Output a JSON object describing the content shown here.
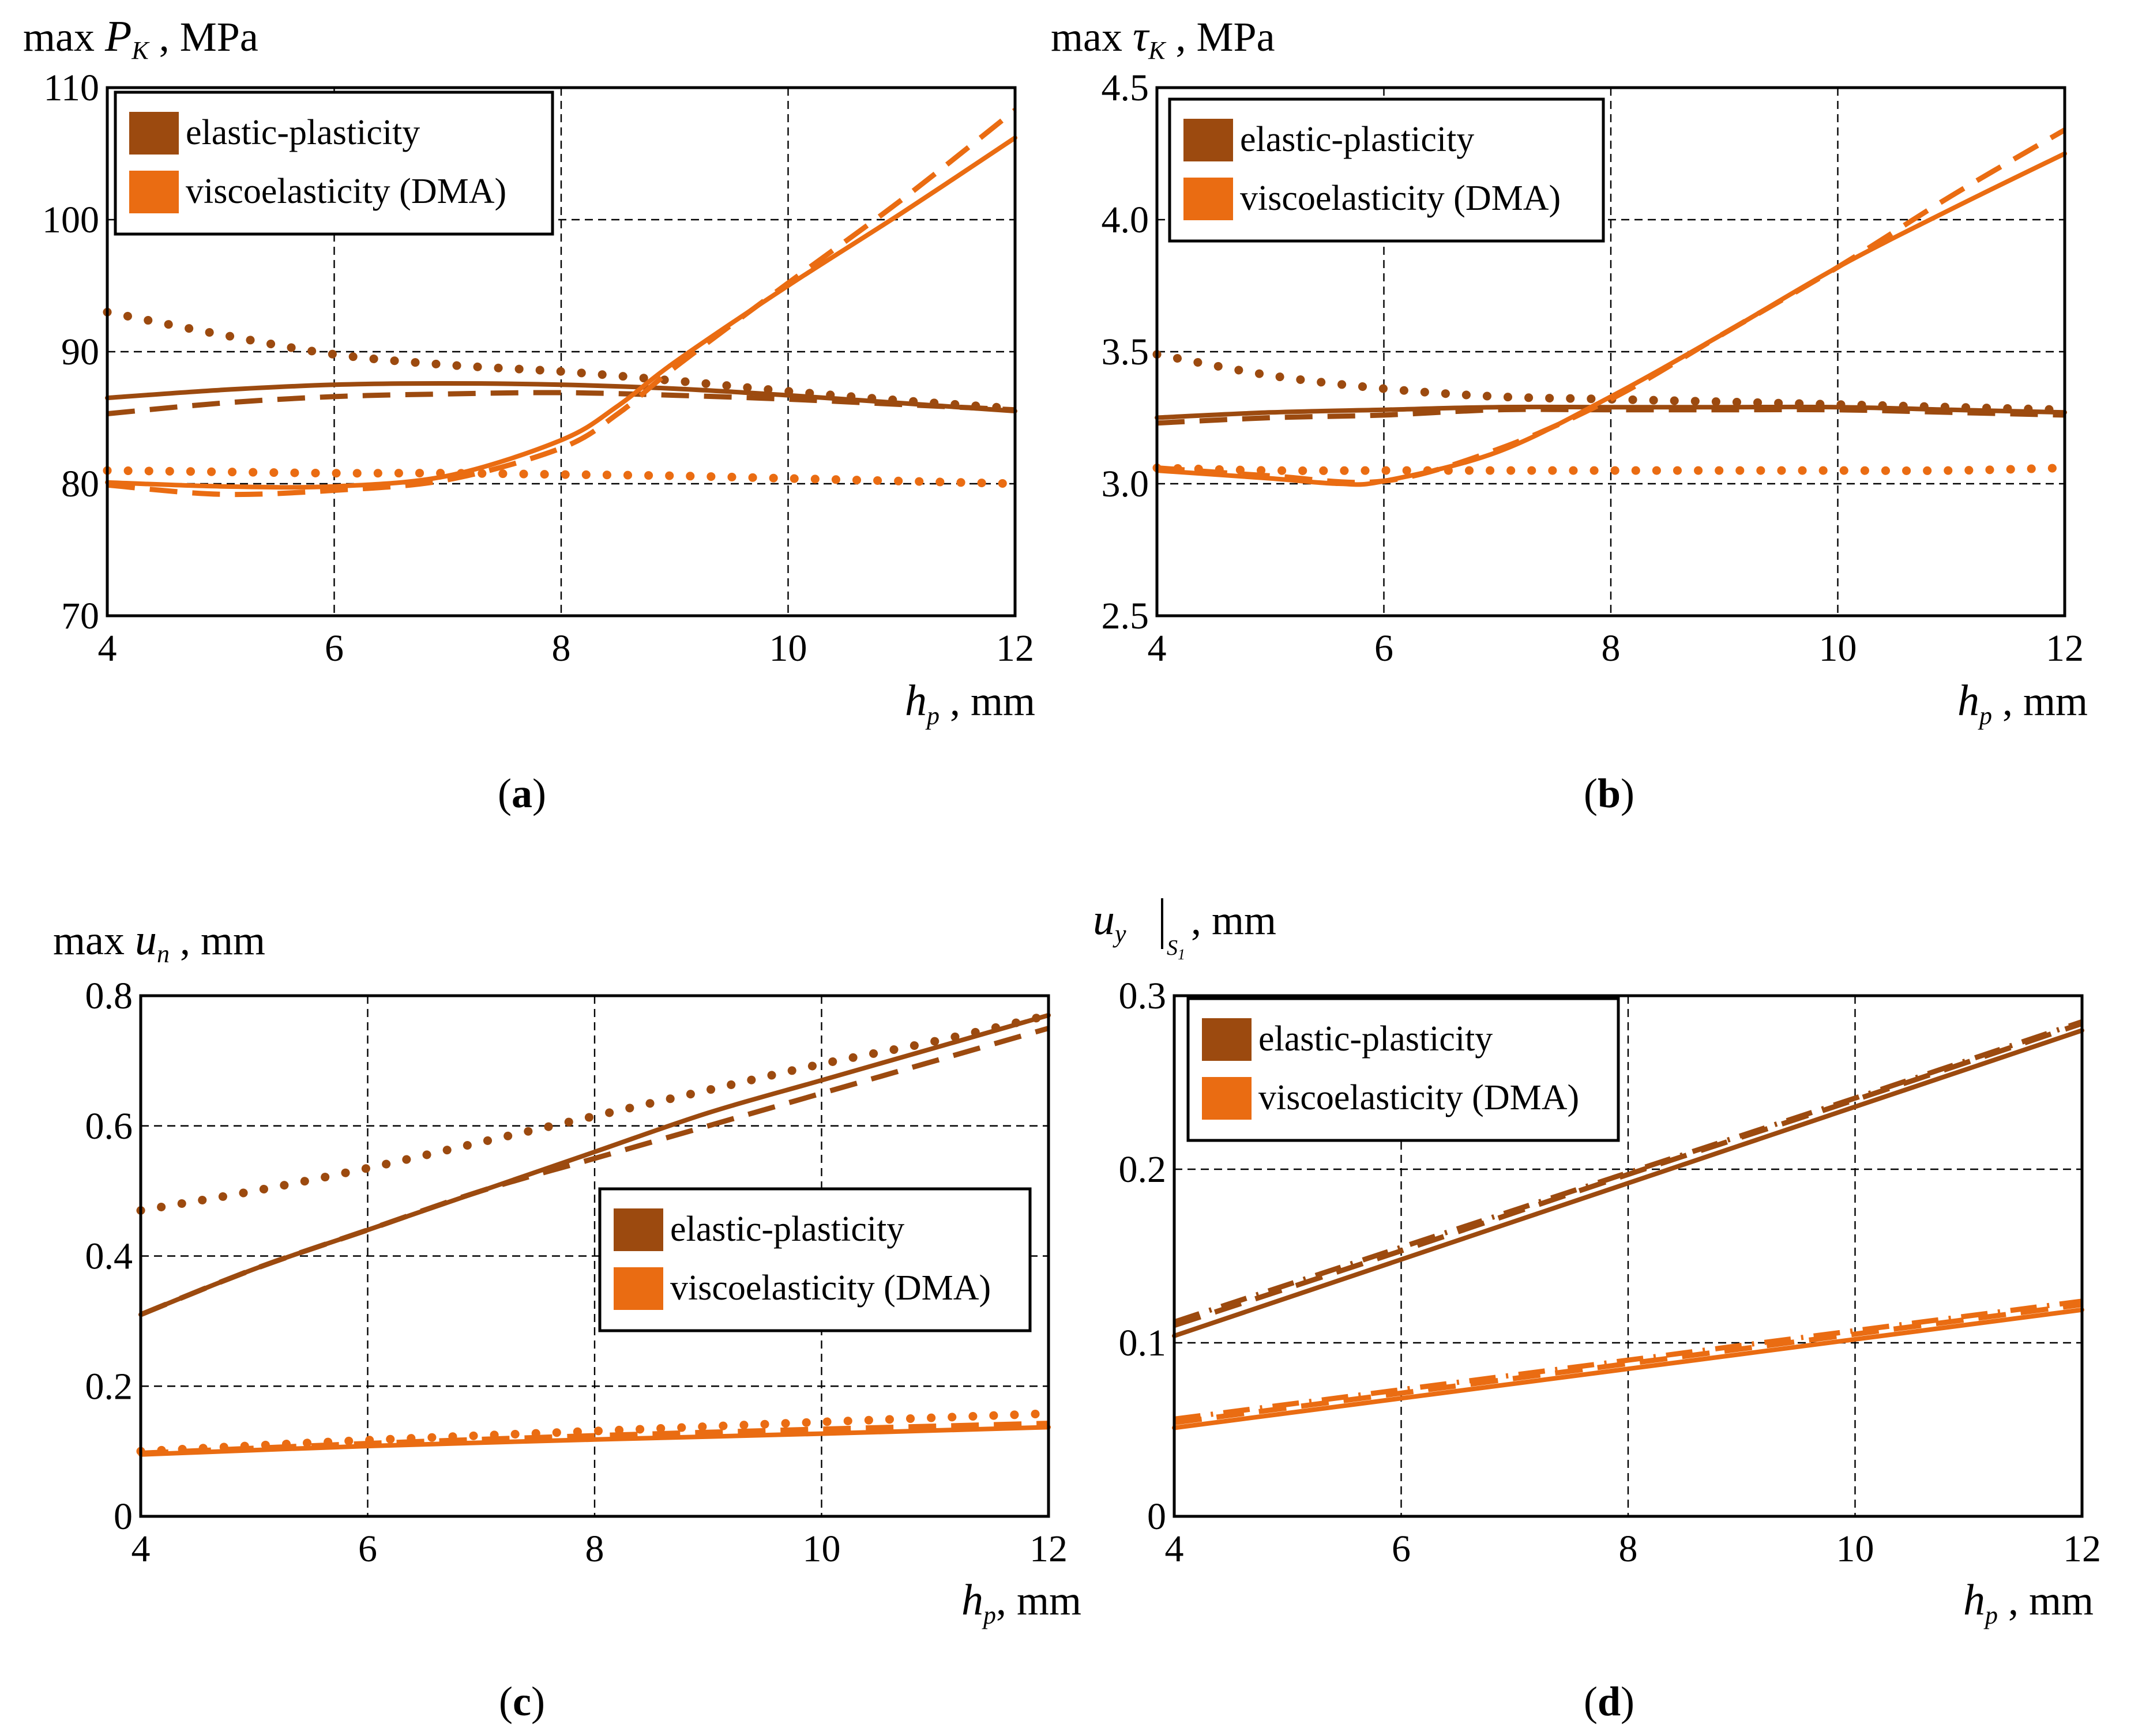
{
  "colors": {
    "elastic": "#9c4a0f",
    "visco": "#ea6c12",
    "grid": "#000000",
    "frame": "#000000"
  },
  "chart_data": [
    {
      "id": "a",
      "type": "line",
      "panel_label": "a",
      "ylabel_prefix": "max ",
      "ylabel_symbol": "P",
      "ylabel_sub": "K",
      "ylabel_unit": " , MPa",
      "xlabel_symbol": "h",
      "xlabel_sub": "p",
      "xlabel_unit": " , mm",
      "xlim": [
        4,
        12
      ],
      "ylim": [
        70,
        110
      ],
      "xticks": [
        4,
        6,
        8,
        10,
        12
      ],
      "yticks": [
        70,
        80,
        90,
        100,
        110
      ],
      "ytick_labels": [
        "70",
        "80",
        "90",
        "100",
        "110"
      ],
      "grid": true,
      "legend": {
        "placement": "top-left",
        "entries": [
          {
            "label": "elastic-plasticity",
            "color_key": "elastic"
          },
          {
            "label": "viscoelasticity (DMA)",
            "color_key": "visco"
          }
        ]
      },
      "series": [
        {
          "color_key": "elastic",
          "style": "solid",
          "x": [
            4,
            5,
            6,
            7,
            8,
            9,
            10,
            11,
            12
          ],
          "y": [
            86.5,
            87.1,
            87.5,
            87.6,
            87.5,
            87.2,
            86.7,
            86.1,
            85.5
          ]
        },
        {
          "color_key": "elastic",
          "style": "dashed",
          "x": [
            4,
            5,
            6,
            7,
            8,
            9,
            10,
            11,
            12
          ],
          "y": [
            85.3,
            86.1,
            86.6,
            86.8,
            86.9,
            86.7,
            86.4,
            86.0,
            85.6
          ]
        },
        {
          "color_key": "elastic",
          "style": "dotted",
          "x": [
            4,
            5,
            6,
            7,
            8,
            9,
            10,
            11,
            12
          ],
          "y": [
            93.0,
            91.3,
            89.8,
            89.0,
            88.5,
            87.8,
            87.0,
            86.3,
            85.7
          ]
        },
        {
          "color_key": "visco",
          "style": "solid",
          "x": [
            4,
            5,
            6,
            7,
            8,
            8.5,
            9,
            10,
            11,
            12
          ],
          "y": [
            80.1,
            79.8,
            79.8,
            80.6,
            83.3,
            85.9,
            89.2,
            95.0,
            100.5,
            106.2
          ]
        },
        {
          "color_key": "visco",
          "style": "dashed",
          "x": [
            4,
            5,
            6,
            7,
            8,
            8.5,
            9,
            10,
            11,
            12
          ],
          "y": [
            79.9,
            79.2,
            79.5,
            80.3,
            82.7,
            85.3,
            88.8,
            95.2,
            101.5,
            108.3
          ]
        },
        {
          "color_key": "visco",
          "style": "dotted",
          "x": [
            4,
            5,
            6,
            7,
            8,
            9,
            10,
            11,
            12
          ],
          "y": [
            81.0,
            80.9,
            80.8,
            80.8,
            80.7,
            80.6,
            80.4,
            80.2,
            80.0
          ]
        }
      ]
    },
    {
      "id": "b",
      "type": "line",
      "panel_label": "b",
      "ylabel_prefix": "max ",
      "ylabel_symbol": "τ",
      "ylabel_sub": "K",
      "ylabel_unit": " , MPa",
      "xlabel_symbol": "h",
      "xlabel_sub": "p",
      "xlabel_unit": " , mm",
      "xlim": [
        4,
        12
      ],
      "ylim": [
        2.5,
        4.5
      ],
      "xticks": [
        4,
        6,
        8,
        10,
        12
      ],
      "yticks": [
        2.5,
        3.0,
        3.5,
        4.0,
        4.5
      ],
      "ytick_labels": [
        "2.5",
        "3.0",
        "3.5",
        "4.0",
        "4.5"
      ],
      "grid": true,
      "legend": {
        "placement": "top-left",
        "entries": [
          {
            "label": "elastic-plasticity",
            "color_key": "elastic"
          },
          {
            "label": "viscoelasticity (DMA)",
            "color_key": "visco"
          }
        ]
      },
      "series": [
        {
          "color_key": "elastic",
          "style": "solid",
          "x": [
            4,
            5,
            6,
            7,
            8,
            9,
            10,
            11,
            12
          ],
          "y": [
            3.25,
            3.27,
            3.28,
            3.29,
            3.29,
            3.29,
            3.29,
            3.28,
            3.27
          ]
        },
        {
          "color_key": "elastic",
          "style": "dashed",
          "x": [
            4,
            5,
            6,
            7,
            8,
            9,
            10,
            11,
            12
          ],
          "y": [
            3.23,
            3.25,
            3.26,
            3.28,
            3.28,
            3.28,
            3.28,
            3.27,
            3.26
          ]
        },
        {
          "color_key": "elastic",
          "style": "dotted",
          "x": [
            4,
            5,
            6,
            7,
            8,
            9,
            10,
            11,
            12
          ],
          "y": [
            3.49,
            3.41,
            3.36,
            3.33,
            3.32,
            3.31,
            3.3,
            3.29,
            3.28
          ]
        },
        {
          "color_key": "visco",
          "style": "solid",
          "x": [
            4,
            5,
            5.6,
            6,
            7,
            8,
            9,
            10,
            11,
            12
          ],
          "y": [
            3.05,
            3.02,
            3.0,
            3.01,
            3.12,
            3.33,
            3.57,
            3.82,
            4.04,
            4.25
          ]
        },
        {
          "color_key": "visco",
          "style": "dashed",
          "x": [
            4,
            5,
            6,
            7,
            8,
            9,
            10,
            11,
            12
          ],
          "y": [
            3.06,
            3.03,
            3.01,
            3.13,
            3.32,
            3.57,
            3.82,
            4.09,
            4.34
          ]
        },
        {
          "color_key": "visco",
          "style": "dotted",
          "x": [
            4,
            5,
            6,
            7,
            8,
            9,
            10,
            11,
            12
          ],
          "y": [
            3.06,
            3.05,
            3.05,
            3.05,
            3.05,
            3.05,
            3.05,
            3.05,
            3.06
          ]
        }
      ]
    },
    {
      "id": "c",
      "type": "line",
      "panel_label": "c",
      "ylabel_prefix": "max ",
      "ylabel_symbol": "u",
      "ylabel_sub": "n",
      "ylabel_unit": " , mm",
      "xlabel_symbol": "h",
      "xlabel_sub": "p",
      "xlabel_unit": ", mm",
      "xlim": [
        4,
        12
      ],
      "ylim": [
        0,
        0.8
      ],
      "xticks": [
        4,
        6,
        8,
        10,
        12
      ],
      "yticks": [
        0,
        0.2,
        0.4,
        0.6,
        0.8
      ],
      "ytick_labels": [
        "0",
        "0.2",
        "0.4",
        "0.6",
        "0.8"
      ],
      "grid": true,
      "legend": {
        "placement": "center-right",
        "entries": [
          {
            "label": "elastic-plasticity",
            "color_key": "elastic"
          },
          {
            "label": "viscoelasticity (DMA)",
            "color_key": "visco"
          }
        ]
      },
      "series": [
        {
          "color_key": "elastic",
          "style": "solid",
          "x": [
            4,
            5,
            6,
            7,
            8,
            9,
            10,
            11,
            12
          ],
          "y": [
            0.31,
            0.38,
            0.44,
            0.5,
            0.56,
            0.62,
            0.67,
            0.72,
            0.77
          ]
        },
        {
          "color_key": "elastic",
          "style": "dashed",
          "x": [
            4,
            5,
            6,
            7,
            8,
            9,
            10,
            11,
            12
          ],
          "y": [
            0.31,
            0.38,
            0.44,
            0.5,
            0.55,
            0.6,
            0.65,
            0.7,
            0.75
          ]
        },
        {
          "color_key": "elastic",
          "style": "dotted",
          "x": [
            4,
            5,
            6,
            7,
            8,
            9,
            10,
            11,
            12
          ],
          "y": [
            0.47,
            0.5,
            0.535,
            0.575,
            0.615,
            0.655,
            0.695,
            0.73,
            0.77
          ]
        },
        {
          "color_key": "visco",
          "style": "solid",
          "x": [
            4,
            6,
            8,
            10,
            12
          ],
          "y": [
            0.095,
            0.108,
            0.118,
            0.127,
            0.137
          ]
        },
        {
          "color_key": "visco",
          "style": "dashed",
          "x": [
            4,
            6,
            8,
            10,
            12
          ],
          "y": [
            0.097,
            0.112,
            0.124,
            0.134,
            0.143
          ]
        },
        {
          "color_key": "visco",
          "style": "dotted",
          "x": [
            4,
            6,
            8,
            10,
            12
          ],
          "y": [
            0.1,
            0.117,
            0.131,
            0.145,
            0.158
          ]
        }
      ]
    },
    {
      "id": "d",
      "type": "line",
      "panel_label": "d",
      "ylabel_prefix": "",
      "ylabel_symbol": "u",
      "ylabel_sub": "y",
      "ylabel_eval": "S",
      "ylabel_eval_sub": "1",
      "ylabel_unit": " , mm",
      "xlabel_symbol": "h",
      "xlabel_sub": "p",
      "xlabel_unit": " , mm",
      "xlim": [
        4,
        12
      ],
      "ylim": [
        0,
        0.3
      ],
      "xticks": [
        4,
        6,
        8,
        10,
        12
      ],
      "yticks": [
        0,
        0.1,
        0.2,
        0.3
      ],
      "ytick_labels": [
        "0",
        "0.1",
        "0.2",
        "0.3"
      ],
      "grid": true,
      "legend": {
        "placement": "top-left",
        "entries": [
          {
            "label": "elastic-plasticity",
            "color_key": "elastic"
          },
          {
            "label": "viscoelasticity (DMA)",
            "color_key": "visco"
          }
        ]
      },
      "series": [
        {
          "color_key": "elastic",
          "style": "solid",
          "x": [
            4,
            6,
            8,
            10,
            12
          ],
          "y": [
            0.104,
            0.148,
            0.192,
            0.236,
            0.28
          ]
        },
        {
          "color_key": "elastic",
          "style": "dashed",
          "x": [
            4,
            6,
            8,
            10,
            12
          ],
          "y": [
            0.11,
            0.153,
            0.197,
            0.24,
            0.284
          ]
        },
        {
          "color_key": "elastic",
          "style": "dashdot",
          "x": [
            4,
            6,
            8,
            10,
            12
          ],
          "y": [
            0.112,
            0.155,
            0.198,
            0.241,
            0.285
          ]
        },
        {
          "color_key": "visco",
          "style": "solid",
          "x": [
            4,
            6,
            8,
            10,
            12
          ],
          "y": [
            0.051,
            0.068,
            0.085,
            0.102,
            0.119
          ]
        },
        {
          "color_key": "visco",
          "style": "dashed",
          "x": [
            4,
            6,
            8,
            10,
            12
          ],
          "y": [
            0.054,
            0.071,
            0.088,
            0.105,
            0.122
          ]
        },
        {
          "color_key": "visco",
          "style": "dashdot",
          "x": [
            4,
            6,
            8,
            10,
            12
          ],
          "y": [
            0.056,
            0.073,
            0.09,
            0.107,
            0.124
          ]
        }
      ]
    }
  ]
}
